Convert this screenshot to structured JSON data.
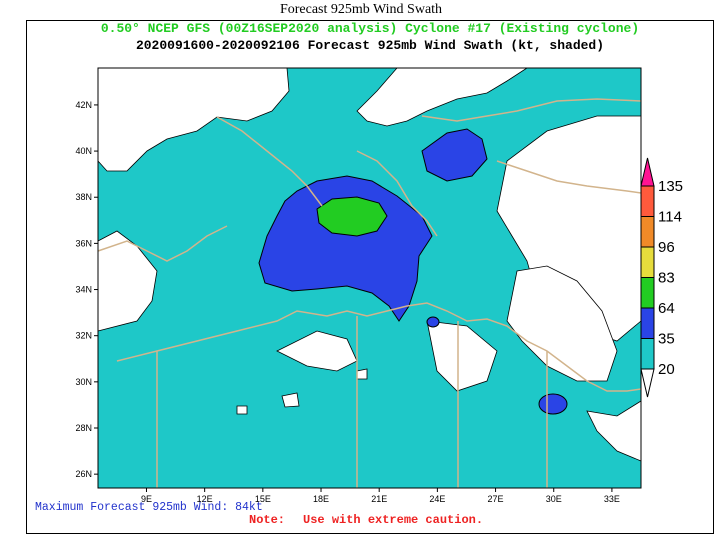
{
  "page_title": "Forecast 925mb Wind Swath",
  "header": {
    "line1": "0.50° NCEP GFS (00Z16SEP2020 analysis) Cyclone #17 (Existing cyclone)",
    "line2": "2020091600-2020092106 Forecast 925mb Wind Swath (kt, shaded)"
  },
  "axes": {
    "y_ticks": [
      "42N",
      "40N",
      "38N",
      "36N",
      "34N",
      "32N",
      "30N",
      "28N",
      "26N"
    ],
    "y_values": [
      42,
      40,
      38,
      36,
      34,
      32,
      30,
      28,
      26
    ],
    "x_ticks": [
      "9E",
      "12E",
      "15E",
      "18E",
      "21E",
      "24E",
      "27E",
      "30E",
      "33E"
    ],
    "x_values": [
      9,
      12,
      15,
      18,
      21,
      24,
      27,
      30,
      33
    ]
  },
  "legend": {
    "values": [
      "135",
      "114",
      "96",
      "83",
      "64",
      "35",
      "20"
    ],
    "colors": [
      "#ff1493",
      "#ff5a3c",
      "#f08a28",
      "#e6dc3c",
      "#22cc22",
      "#2a44e6",
      "#1ec8c8"
    ]
  },
  "colors": {
    "land_border": "#d2b48c",
    "ocean_fill": "#1ec8c8",
    "band35": "#2a44e6",
    "band64": "#22cc22"
  },
  "footer": {
    "max_wind": "Maximum Forecast 925mb Wind: 84kt",
    "note_label": "Note:",
    "note_text": "Use with extreme caution."
  }
}
